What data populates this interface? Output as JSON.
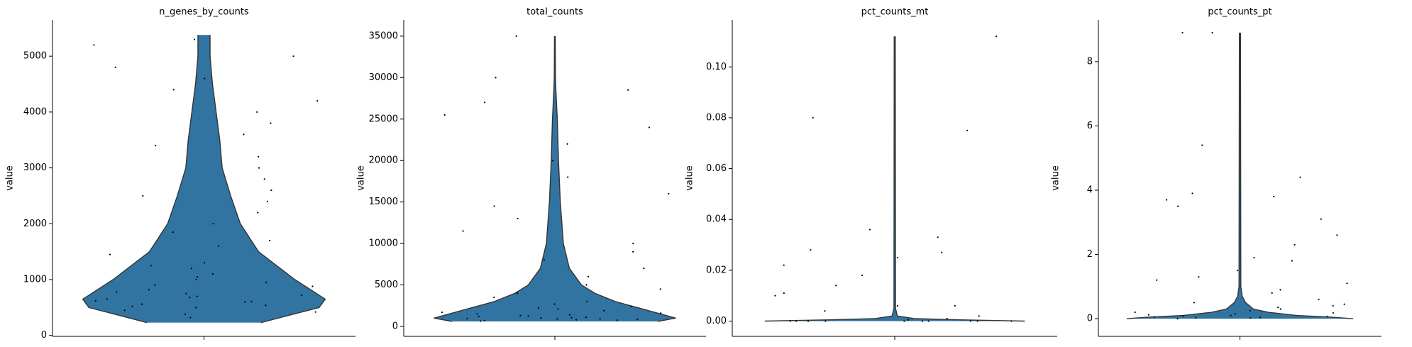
{
  "chart_data": [
    {
      "type": "violin",
      "title": "n_genes_by_counts",
      "ylabel": "value",
      "color": "#3274a1",
      "ylim": [
        -16,
        5650
      ],
      "yticks": [
        0,
        1000,
        2000,
        3000,
        4000,
        5000
      ],
      "levels": [
        230,
        500,
        650,
        1000,
        1500,
        2000,
        2500,
        3000,
        3500,
        4000,
        4500,
        5000,
        5380
      ],
      "density": [
        0.47,
        0.95,
        1.0,
        0.75,
        0.45,
        0.3,
        0.22,
        0.15,
        0.13,
        0.1,
        0.07,
        0.05,
        0.05
      ],
      "points": [
        320,
        380,
        420,
        450,
        500,
        520,
        560,
        600,
        620,
        650,
        700,
        720,
        780,
        820,
        900,
        950,
        1000,
        1100,
        1200,
        1300,
        1450,
        1600,
        1700,
        1850,
        2000,
        2200,
        2400,
        2600,
        2800,
        3000,
        3200,
        3400,
        3600,
        3800,
        4000,
        4200,
        4400,
        4600,
        4800,
        5000,
        5200,
        5300,
        540,
        610,
        680,
        750,
        880,
        1050,
        1250,
        2500
      ]
    },
    {
      "type": "violin",
      "title": "total_counts",
      "ylabel": "value",
      "color": "#3274a1",
      "ylim": [
        -1200,
        36960
      ],
      "yticks": [
        0,
        5000,
        10000,
        15000,
        20000,
        25000,
        30000,
        35000
      ],
      "levels": [
        600,
        1000,
        2000,
        3000,
        4000,
        5000,
        7000,
        10000,
        15000,
        20000,
        25000,
        28000,
        30000,
        35000
      ],
      "density": [
        0.85,
        1.0,
        0.75,
        0.5,
        0.33,
        0.22,
        0.12,
        0.07,
        0.045,
        0.03,
        0.02,
        0.01,
        0.005,
        0.003
      ],
      "points": [
        650,
        700,
        750,
        800,
        850,
        900,
        950,
        1000,
        1100,
        1200,
        1300,
        1400,
        1500,
        1700,
        1900,
        2100,
        2400,
        2700,
        3000,
        3500,
        4000,
        4500,
        5000,
        6000,
        7000,
        8000,
        9000,
        10000,
        11500,
        13000,
        14500,
        16000,
        18000,
        20000,
        22000,
        24000,
        25500,
        27000,
        28500,
        30000,
        35000,
        900,
        1050,
        1250,
        1600,
        2200
      ]
    },
    {
      "type": "violin",
      "title": "pct_counts_mt",
      "ylabel": "value",
      "color": "#3274a1",
      "ylim": [
        -0.006,
        0.1185
      ],
      "yticks": [
        {
          "value": 0,
          "label": "0.00"
        },
        {
          "value": 0.02,
          "label": "0.02"
        },
        {
          "value": 0.04,
          "label": "0.04"
        },
        {
          "value": 0.06,
          "label": "0.06"
        },
        {
          "value": 0.08,
          "label": "0.08"
        },
        {
          "value": 0.1,
          "label": "0.10"
        }
      ],
      "levels": [
        0,
        0.0005,
        0.001,
        0.002,
        0.005,
        0.112
      ],
      "density": [
        1.0,
        0.5,
        0.15,
        0.02,
        0.006,
        0.004
      ],
      "points": [
        0,
        0,
        0,
        0,
        0,
        0,
        0,
        0,
        0,
        0,
        0.0005,
        0.001,
        0.002,
        0.004,
        0.006,
        0.006,
        0.01,
        0.011,
        0.014,
        0.018,
        0.022,
        0.025,
        0.027,
        0.028,
        0.033,
        0.036,
        0.075,
        0.08,
        0.112
      ]
    },
    {
      "type": "violin",
      "title": "pct_counts_pt",
      "ylabel": "value",
      "color": "#3274a1",
      "ylim": [
        -0.55,
        9.3
      ],
      "yticks": [
        0,
        2,
        4,
        6,
        8
      ],
      "levels": [
        0,
        0.05,
        0.1,
        0.2,
        0.3,
        0.5,
        0.7,
        1,
        8.9
      ],
      "density": [
        1.0,
        0.8,
        0.5,
        0.25,
        0.12,
        0.05,
        0.02,
        0.008,
        0.005
      ],
      "points": [
        0,
        0.02,
        0.04,
        0.05,
        0.08,
        0.1,
        0.12,
        0.15,
        0.2,
        0.25,
        0.3,
        0.35,
        0.4,
        0.5,
        0.6,
        0.8,
        0.9,
        1.1,
        1.2,
        1.3,
        1.5,
        1.8,
        1.9,
        2.3,
        2.6,
        3.1,
        3.5,
        3.7,
        3.8,
        3.9,
        4.4,
        5.4,
        8.9,
        8.9,
        0.03,
        0.07,
        0.18,
        0.45
      ]
    }
  ]
}
